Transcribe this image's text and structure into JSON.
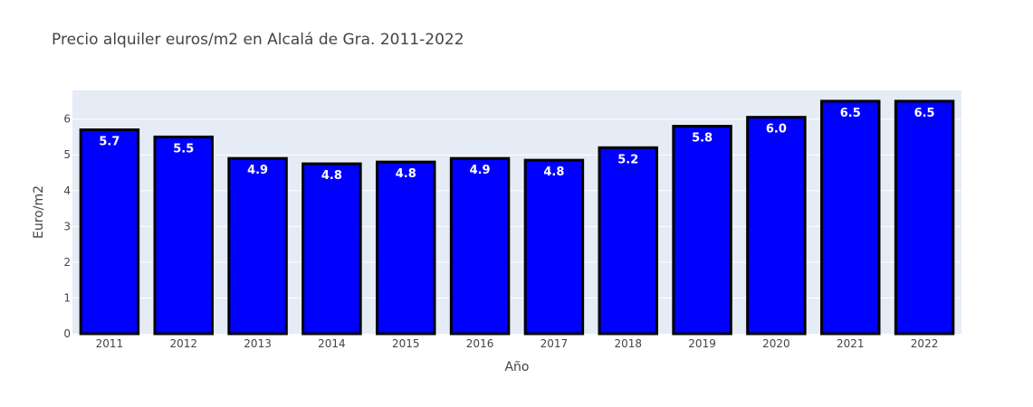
{
  "chart_data": {
    "type": "bar",
    "title": "Precio alquiler euros/m2 en Alcalá de Gra. 2011-2022",
    "xlabel": "Año",
    "ylabel": "Euro/m2",
    "categories": [
      "2011",
      "2012",
      "2013",
      "2014",
      "2015",
      "2016",
      "2017",
      "2018",
      "2019",
      "2020",
      "2021",
      "2022"
    ],
    "values": [
      5.7,
      5.5,
      4.9,
      4.75,
      4.8,
      4.9,
      4.85,
      5.2,
      5.8,
      6.05,
      6.5,
      6.5
    ],
    "data_labels": [
      "5.7",
      "5.5",
      "4.9",
      "4.8",
      "4.8",
      "4.9",
      "4.8",
      "5.2",
      "5.8",
      "6.0",
      "6.5",
      "6.5"
    ],
    "yticks": [
      "0",
      "1",
      "2",
      "3",
      "4",
      "5",
      "6"
    ],
    "ylim": [
      0,
      6.8
    ],
    "grid": true,
    "legend": "none",
    "colors": {
      "bar_fill": "#0000ff",
      "bar_outline": "#000000",
      "plot_background": "#e5ecf6",
      "grid": "#ffffff",
      "text": "#444444",
      "data_label": "#ffffff"
    }
  }
}
